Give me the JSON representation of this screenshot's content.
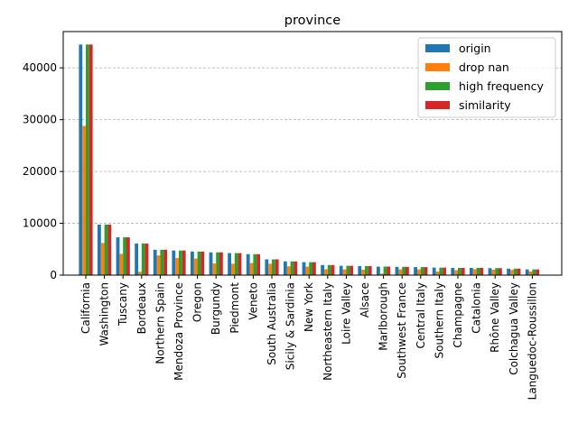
{
  "chart_data": {
    "type": "bar",
    "title": "province",
    "xlabel": "",
    "ylabel": "",
    "ylim": [
      0,
      47000
    ],
    "yticks": [
      0,
      10000,
      20000,
      30000,
      40000
    ],
    "ytick_labels": [
      "0",
      "10000",
      "20000",
      "30000",
      "40000"
    ],
    "grid": "y dashed",
    "legend_position": "top-right",
    "categories": [
      "California",
      "Washington",
      "Tuscany",
      "Bordeaux",
      "Northern Spain",
      "Mendoza Province",
      "Oregon",
      "Burgundy",
      "Piedmont",
      "Veneto",
      "South Australia",
      "Sicily & Sardinia",
      "New York",
      "Northeastern Italy",
      "Loire Valley",
      "Alsace",
      "Marlborough",
      "Southwest France",
      "Central Italy",
      "Southern Italy",
      "Champagne",
      "Catalonia",
      "Rhône Valley",
      "Colchagua Valley",
      "Languedoc-Roussillon"
    ],
    "series": [
      {
        "name": "origin",
        "color": "#1f77b4",
        "values": [
          44500,
          9750,
          7300,
          6100,
          4900,
          4750,
          4550,
          4400,
          4250,
          4050,
          3050,
          2650,
          2500,
          1950,
          1800,
          1750,
          1650,
          1600,
          1550,
          1450,
          1400,
          1400,
          1350,
          1250,
          1100
        ]
      },
      {
        "name": "drop nan",
        "color": "#ff7f0e",
        "values": [
          28800,
          6200,
          4100,
          650,
          3800,
          3300,
          3200,
          2250,
          2200,
          2350,
          2200,
          1700,
          1650,
          1150,
          1100,
          1050,
          300,
          1100,
          1100,
          700,
          950,
          1150,
          1050,
          1000,
          700
        ]
      },
      {
        "name": "high frequency",
        "color": "#2ca02c",
        "values": [
          44500,
          9750,
          7300,
          6100,
          4900,
          4750,
          4550,
          4400,
          4250,
          4050,
          3050,
          2650,
          2500,
          1950,
          1800,
          1750,
          1650,
          1600,
          1550,
          1450,
          1400,
          1400,
          1350,
          1250,
          1100
        ]
      },
      {
        "name": "similarity",
        "color": "#d62728",
        "values": [
          44500,
          9750,
          7300,
          6100,
          4900,
          4750,
          4550,
          4400,
          4250,
          4050,
          3050,
          2650,
          2500,
          1950,
          1800,
          1750,
          1650,
          1600,
          1550,
          1450,
          1400,
          1400,
          1350,
          1250,
          1100
        ]
      }
    ]
  }
}
